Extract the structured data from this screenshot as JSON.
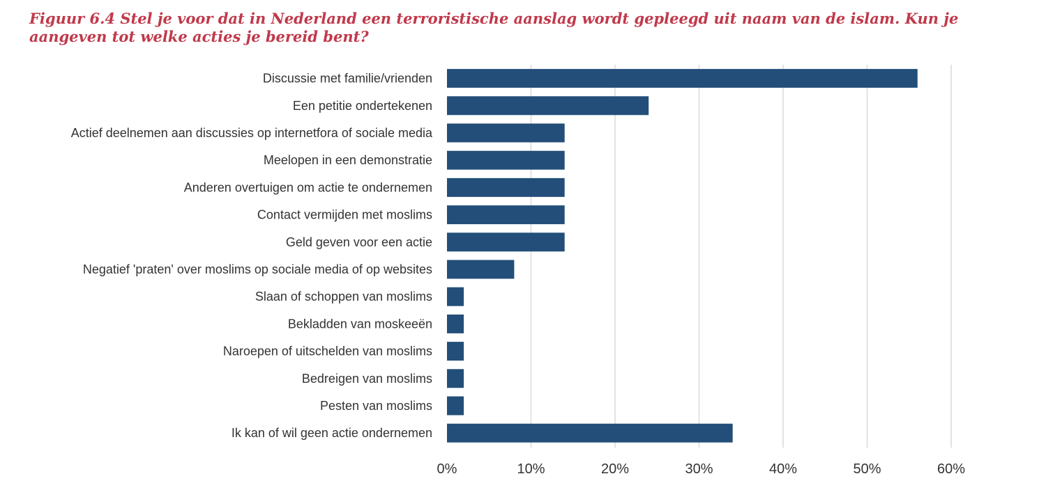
{
  "chart_data": {
    "type": "bar",
    "orientation": "horizontal",
    "title": "Figuur 6.4 Stel je voor dat in Nederland een terroristische aanslag wordt gepleegd uit naam van de islam. Kun je aangeven tot welke acties je bereid bent?",
    "categories": [
      "Discussie met familie/vrienden",
      "Een petitie ondertekenen",
      "Actief deelnemen aan discussies op internetfora of sociale media",
      "Meelopen in een demonstratie",
      "Anderen overtuigen om actie te ondernemen",
      "Contact vermijden met moslims",
      "Geld geven voor een actie",
      "Negatief 'praten' over moslims op sociale media of op websites",
      "Slaan of schoppen van moslims",
      "Bekladden van moskeeën",
      "Naroepen of uitschelden van moslims",
      "Bedreigen van moslims",
      "Pesten van moslims",
      "Ik kan of wil geen actie ondernemen"
    ],
    "values": [
      56,
      24,
      14,
      14,
      14,
      14,
      14,
      8,
      2,
      2,
      2,
      2,
      2,
      34
    ],
    "xlim": [
      0,
      60
    ],
    "xticks": [
      "0%",
      "10%",
      "20%",
      "30%",
      "40%",
      "50%",
      "60%"
    ],
    "xtick_values": [
      0,
      10,
      20,
      30,
      40,
      50,
      60
    ],
    "grid": "vertical",
    "legend": "none",
    "bar_color": "#234e79",
    "grid_color": "#d9d9d9"
  }
}
